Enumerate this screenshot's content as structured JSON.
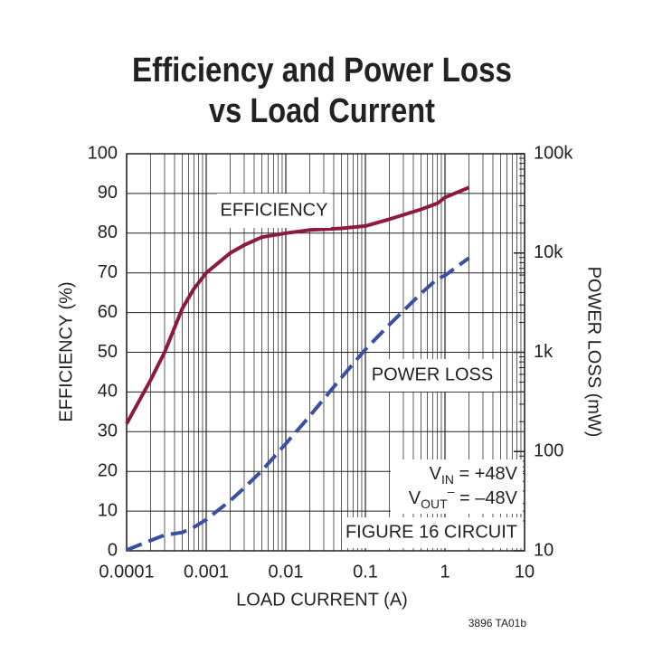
{
  "chart_data": {
    "type": "line",
    "title": [
      "Efficiency and Power Loss",
      "vs Load Current"
    ],
    "x_label": "LOAD CURRENT (A)",
    "y_label": "EFFICIENCY (%)",
    "y2_label": "POWER LOSS (mW)",
    "xlog": true,
    "y2log": true,
    "grid": true,
    "xlim": [
      0.0001,
      10
    ],
    "xticks": [
      0.0001,
      0.001,
      0.01,
      0.1,
      1,
      10
    ],
    "ylim": [
      0,
      100
    ],
    "yticks": [
      0,
      10,
      20,
      30,
      40,
      50,
      60,
      70,
      80,
      90,
      100
    ],
    "y2lim": [
      10,
      100000
    ],
    "y2ticks": [
      10,
      100,
      {
        "value": 1000,
        "label": "1k"
      },
      {
        "value": 10000,
        "label": "10k"
      },
      {
        "value": 100000,
        "label": "100k"
      }
    ],
    "x": [
      0.0001,
      0.0002,
      0.0003,
      0.0005,
      0.0007,
      0.001,
      0.002,
      0.003,
      0.005,
      0.01,
      0.02,
      0.05,
      0.1,
      0.2,
      0.5,
      0.8,
      1,
      2
    ],
    "series": [
      {
        "name": "EFFICIENCY",
        "color": "#8c1a3c",
        "dashed": false,
        "values": [
          32,
          43,
          50,
          61,
          66,
          70,
          75,
          77,
          79,
          80,
          80.8,
          81.2,
          81.8,
          83.5,
          86,
          87.5,
          89,
          91.5
        ]
      },
      {
        "name": "POWER LOSS",
        "color": "#3a4fa3",
        "dashed": true,
        "axis": "y2",
        "values": [
          10.2,
          12.7,
          14.4,
          15.3,
          17.3,
          20.6,
          32,
          43,
          64,
          120,
          228,
          556,
          1068,
          1897,
          3907,
          5486,
          5933,
          8918
        ]
      }
    ],
    "annotations": {
      "vin": [
        "V",
        "IN",
        " = +48V"
      ],
      "vout": [
        "V",
        "OUT",
        "–",
        " = –48V"
      ],
      "circuit": "FIGURE 16 CIRCUIT",
      "code": "3896 TA01b"
    }
  }
}
